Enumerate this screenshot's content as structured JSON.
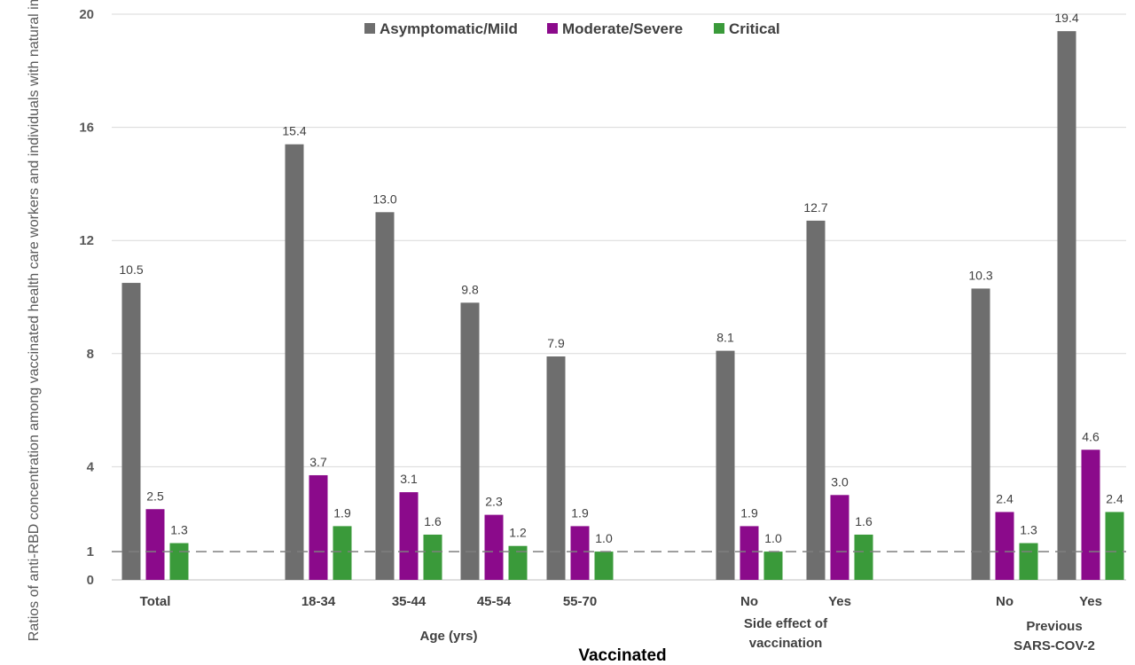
{
  "chart_data": {
    "type": "bar",
    "ylabel": "Ratios of anti-RBD concentration among vaccinated health care workers and individuals with natural immunity",
    "yticks": [
      0,
      1,
      4,
      8,
      12,
      16,
      20
    ],
    "ylim": [
      0,
      20
    ],
    "grid": true,
    "legend_position": "top",
    "reference_line": 1,
    "categories": [
      "Total",
      "18-34",
      "35-44",
      "45-54",
      "55-70",
      "No",
      "Yes",
      "No",
      "Yes"
    ],
    "category_groups": [
      {
        "label_lines": [
          "Age (yrs)"
        ]
      },
      {
        "label_lines": [
          "Side effect of",
          "vaccination"
        ]
      },
      {
        "label_lines": [
          "Previous",
          "SARS-COV-2"
        ]
      }
    ],
    "series": [
      {
        "name": "Asymptomatic/Mild",
        "color": "#6e6e6e",
        "values": [
          10.5,
          15.4,
          13.0,
          9.8,
          7.9,
          8.1,
          12.7,
          10.3,
          19.4
        ]
      },
      {
        "name": "Moderate/Severe",
        "color": "#8b0a8b",
        "values": [
          2.5,
          3.7,
          3.1,
          2.3,
          1.9,
          1.9,
          3.0,
          2.4,
          4.6
        ]
      },
      {
        "name": "Critical",
        "color": "#3a9a3a",
        "values": [
          1.3,
          1.9,
          1.6,
          1.2,
          1.0,
          1.0,
          1.6,
          1.3,
          2.4
        ]
      }
    ],
    "data_labels": [
      [
        "10.5",
        "15.4",
        "13.0",
        "9.8",
        "7.9",
        "8.1",
        "12.7",
        "10.3",
        "19.4"
      ],
      [
        "2.5",
        "3.7",
        "3.1",
        "2.3",
        "1.9",
        "1.9",
        "3.0",
        "2.4",
        "4.6"
      ],
      [
        "1.3",
        "1.9",
        "1.6",
        "1.2",
        "1.0",
        "1.0",
        "1.6",
        "1.3",
        "2.4"
      ]
    ],
    "footer_label": "Vaccinated"
  }
}
